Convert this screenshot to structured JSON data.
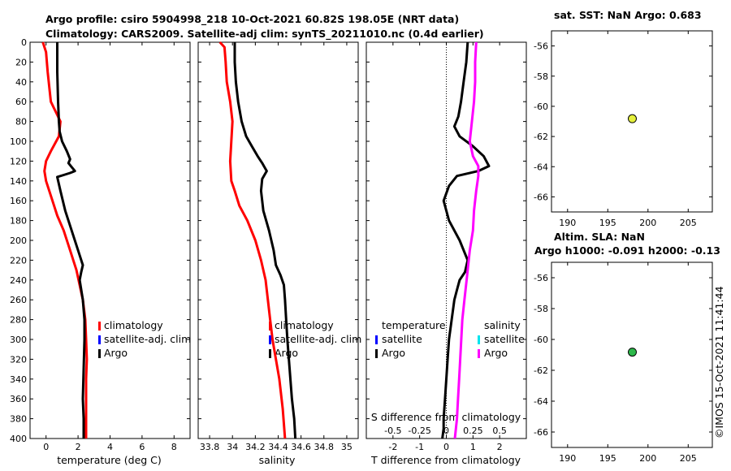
{
  "header": {
    "title_line1": "Argo profile: csiro 5904998_218 10-Oct-2021 60.82S 198.05E (NRT data)",
    "title_line2": "Climatology: CARS2009. Satellite-adj clim: synTS_20211010.nc (0.4d earlier)"
  },
  "watermark": "©IMOS 15-Oct-2021 11:41:44",
  "colors": {
    "climatology": "#ff0000",
    "satellite": "#0000ff",
    "argo": "#000000",
    "salinity_argo": "#ff00ff",
    "satellite_salinity": "#00e5ee",
    "sst_marker": "#e5f03c",
    "sla_marker": "#2db84a"
  },
  "chart_data": [
    {
      "type": "line",
      "title": "",
      "xlabel": "temperature (deg C)",
      "ylabel": "",
      "xlim": [
        -1,
        9
      ],
      "ylim": [
        400,
        0
      ],
      "xticks": [
        0,
        2,
        4,
        6,
        8
      ],
      "yticks": [
        0,
        20,
        40,
        60,
        80,
        100,
        120,
        140,
        160,
        180,
        200,
        220,
        240,
        260,
        280,
        300,
        320,
        340,
        360,
        380,
        400
      ],
      "legend": [
        "climatology",
        "satellite-adj. clim",
        "Argo"
      ],
      "series": [
        {
          "name": "climatology",
          "color_key": "climatology",
          "x": [
            -0.2,
            0.0,
            0.1,
            0.3,
            0.6,
            0.9,
            0.8,
            0.3,
            0.0,
            -0.1,
            0.0,
            0.4,
            0.7,
            1.1,
            1.5,
            1.9,
            2.3,
            2.45,
            2.5,
            2.55,
            2.5,
            2.5,
            2.5
          ],
          "y": [
            0,
            10,
            30,
            60,
            70,
            80,
            95,
            110,
            120,
            130,
            140,
            160,
            175,
            190,
            210,
            230,
            260,
            280,
            300,
            320,
            340,
            380,
            400
          ]
        },
        {
          "name": "Argo",
          "color_key": "argo",
          "x": [
            0.7,
            0.7,
            0.75,
            0.8,
            0.85,
            1.0,
            1.3,
            1.5,
            1.4,
            1.6,
            1.8,
            1.5,
            1.1,
            0.7,
            0.9,
            1.2,
            1.6,
            2.0,
            2.3,
            2.2,
            2.1,
            2.3,
            2.4,
            2.4,
            2.35,
            2.3,
            2.35,
            2.35
          ],
          "y": [
            0,
            30,
            60,
            80,
            90,
            100,
            110,
            118,
            122,
            126,
            130,
            132,
            134,
            136,
            150,
            170,
            190,
            210,
            225,
            232,
            240,
            260,
            280,
            300,
            330,
            360,
            380,
            400
          ]
        }
      ]
    },
    {
      "type": "line",
      "title": "",
      "xlabel": "salinity",
      "ylabel": "",
      "xlim": [
        33.7,
        35.1
      ],
      "ylim": [
        400,
        0
      ],
      "xticks": [
        33.8,
        34.0,
        34.2,
        34.4,
        34.6,
        34.8,
        35.0
      ],
      "xtick_labels": [
        "33.8",
        "34",
        "34.2",
        "34.4",
        "34.6",
        "34.8",
        "35"
      ],
      "yticks": [
        0,
        20,
        40,
        60,
        80,
        100,
        120,
        140,
        160,
        180,
        200,
        220,
        240,
        260,
        280,
        300,
        320,
        340,
        360,
        380,
        400
      ],
      "legend": [
        "climatology",
        "satellite-adj. clim",
        "Argo"
      ],
      "series": [
        {
          "name": "climatology",
          "color_key": "climatology",
          "x": [
            33.89,
            33.93,
            33.94,
            33.95,
            33.98,
            34.0,
            33.99,
            33.98,
            33.99,
            34.02,
            34.06,
            34.13,
            34.2,
            34.25,
            34.29,
            34.31,
            34.33,
            34.35,
            34.38,
            34.41,
            34.44,
            34.46
          ],
          "y": [
            0,
            5,
            20,
            40,
            60,
            80,
            100,
            120,
            140,
            150,
            165,
            180,
            200,
            220,
            240,
            260,
            280,
            300,
            320,
            340,
            370,
            400
          ]
        },
        {
          "name": "Argo",
          "color_key": "argo",
          "x": [
            34.02,
            34.02,
            34.03,
            34.05,
            34.08,
            34.12,
            34.17,
            34.22,
            34.26,
            34.28,
            34.3,
            34.28,
            34.26,
            34.25,
            34.27,
            34.32,
            34.36,
            34.38,
            34.42,
            34.45,
            34.46,
            34.47,
            34.48,
            34.5,
            34.52,
            34.54,
            34.55
          ],
          "y": [
            0,
            20,
            40,
            60,
            80,
            95,
            105,
            115,
            122,
            126,
            130,
            134,
            138,
            150,
            170,
            190,
            210,
            225,
            235,
            245,
            260,
            280,
            300,
            330,
            360,
            380,
            400
          ]
        }
      ]
    },
    {
      "type": "line",
      "title": "",
      "xlabel": "T difference from climatology",
      "x2label": "S difference from climatology",
      "ylabel": "",
      "xlim": [
        -3,
        3
      ],
      "ylim": [
        400,
        0
      ],
      "xticks": [
        -2,
        -1,
        0,
        1,
        2
      ],
      "x2ticks": [
        -0.5,
        -0.25,
        0,
        0.25,
        0.5
      ],
      "x2tick_labels": [
        "-0.5",
        "-0.25",
        "0",
        "0.25",
        "0.5"
      ],
      "x2lim": [
        -0.75,
        0.75
      ],
      "yticks": [
        0,
        20,
        40,
        60,
        80,
        100,
        120,
        140,
        160,
        180,
        200,
        220,
        240,
        260,
        280,
        300,
        320,
        340,
        360,
        380,
        400
      ],
      "legend_left": [
        "temperature",
        "satellite",
        "Argo"
      ],
      "legend_right": [
        "salinity",
        "satellite",
        "Argo"
      ],
      "series": [
        {
          "name": "temperature Argo",
          "color_key": "argo",
          "x": [
            0.8,
            0.75,
            0.65,
            0.55,
            0.45,
            0.3,
            0.5,
            1.0,
            1.4,
            1.6,
            1.2,
            0.4,
            0.1,
            -0.1,
            0.1,
            0.5,
            0.8,
            0.7,
            0.5,
            0.4,
            0.3,
            0.2,
            0.1,
            0.05,
            0.0,
            -0.05,
            -0.1,
            -0.1,
            -0.15
          ],
          "y": [
            0,
            20,
            40,
            60,
            75,
            85,
            95,
            105,
            115,
            125,
            130,
            135,
            145,
            160,
            180,
            200,
            220,
            232,
            240,
            250,
            260,
            280,
            300,
            320,
            340,
            360,
            380,
            390,
            400
          ]
        },
        {
          "name": "salinity Argo",
          "color_key": "salinity_argo",
          "x": [
            0.28,
            0.27,
            0.27,
            0.26,
            0.24,
            0.22,
            0.25,
            0.3,
            0.3,
            0.28,
            0.26,
            0.25,
            0.22,
            0.2,
            0.19,
            0.17,
            0.15,
            0.14,
            0.13,
            0.12,
            0.11,
            0.1,
            0.09,
            0.08
          ],
          "y": [
            0,
            20,
            40,
            60,
            80,
            100,
            115,
            125,
            135,
            150,
            170,
            190,
            210,
            230,
            240,
            260,
            280,
            300,
            320,
            340,
            360,
            380,
            390,
            400
          ]
        }
      ]
    },
    {
      "type": "scatter",
      "title": "sat. SST: NaN Argo: 0.683",
      "xlim": [
        188,
        208
      ],
      "ylim": [
        -67,
        -55
      ],
      "xticks": [
        190,
        195,
        200,
        205
      ],
      "yticks": [
        -56,
        -58,
        -60,
        -62,
        -64,
        -66
      ],
      "points": [
        {
          "x": 198.05,
          "y": -60.82,
          "color_key": "sst_marker"
        }
      ]
    },
    {
      "type": "scatter",
      "title_line1": "Altim. SLA: NaN",
      "title_line2": "Argo h1000: -0.091 h2000: -0.13",
      "xlim": [
        188,
        208
      ],
      "ylim": [
        -67,
        -55
      ],
      "xticks": [
        190,
        195,
        200,
        205
      ],
      "yticks": [
        -56,
        -58,
        -60,
        -62,
        -64,
        -66
      ],
      "points": [
        {
          "x": 198.05,
          "y": -60.82,
          "color_key": "sla_marker"
        }
      ]
    }
  ]
}
